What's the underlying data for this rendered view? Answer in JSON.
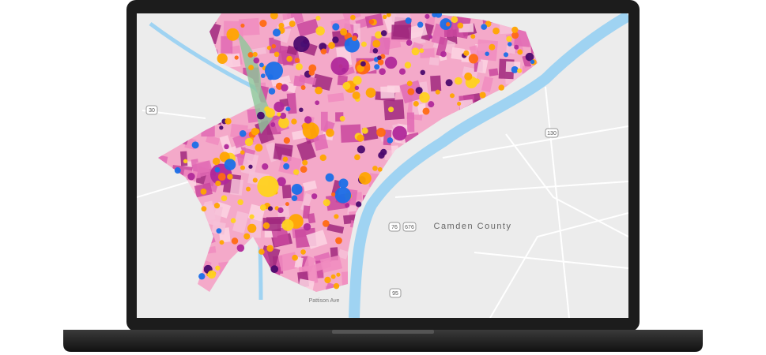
{
  "map": {
    "labels": {
      "county": "Camden County",
      "street": "Pattison Ave",
      "shields": [
        "30",
        "130",
        "76",
        "676",
        "95"
      ]
    }
  }
}
